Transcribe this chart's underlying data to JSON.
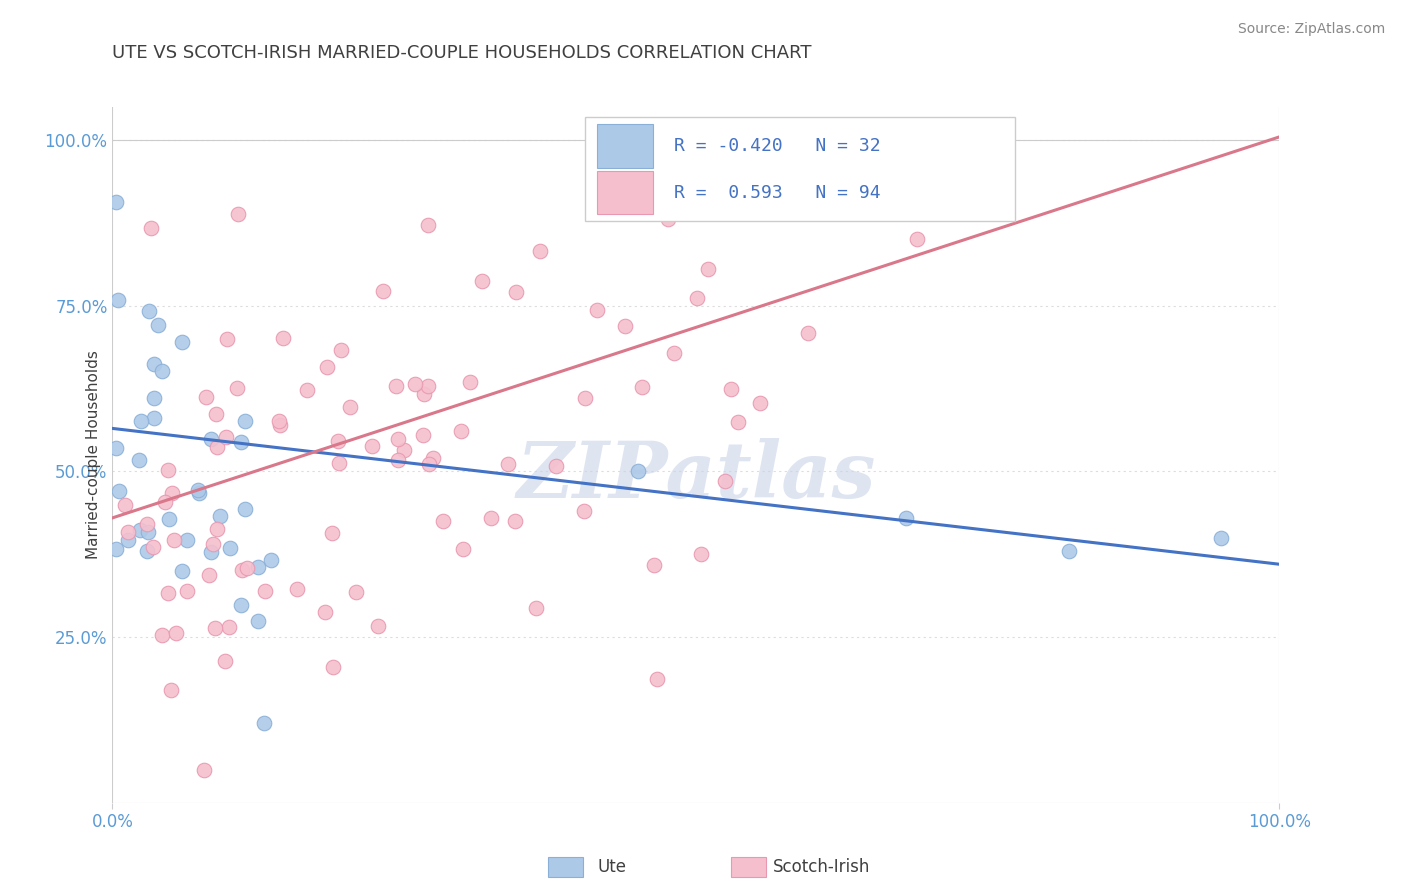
{
  "title": "UTE VS SCOTCH-IRISH MARRIED-COUPLE HOUSEHOLDS CORRELATION CHART",
  "source": "Source: ZipAtlas.com",
  "ylabel": "Married-couple Households",
  "ute_R": -0.42,
  "ute_N": 32,
  "scotch_R": 0.593,
  "scotch_N": 94,
  "xlim": [
    0,
    1
  ],
  "ylim": [
    0,
    1.05
  ],
  "yticks": [
    0.25,
    0.5,
    0.75,
    1.0
  ],
  "ytick_labels": [
    "25.0%",
    "50.0%",
    "75.0%",
    "100.0%"
  ],
  "ute_color": "#adc9e8",
  "ute_edge": "#8ab0d8",
  "scotch_color": "#f5bfce",
  "scotch_edge": "#e898b0",
  "ute_line_color": "#4472c4",
  "scotch_line_color": "#d9788a",
  "watermark": "ZIPatlas",
  "watermark_color": "#c8d4e8",
  "background_color": "#ffffff",
  "grid_color": "#dddddd",
  "title_color": "#404040",
  "axis_label_color": "#5b9bd5",
  "corr_text_color": "#4472c4",
  "source_color": "#888888",
  "border_color": "#cccccc"
}
